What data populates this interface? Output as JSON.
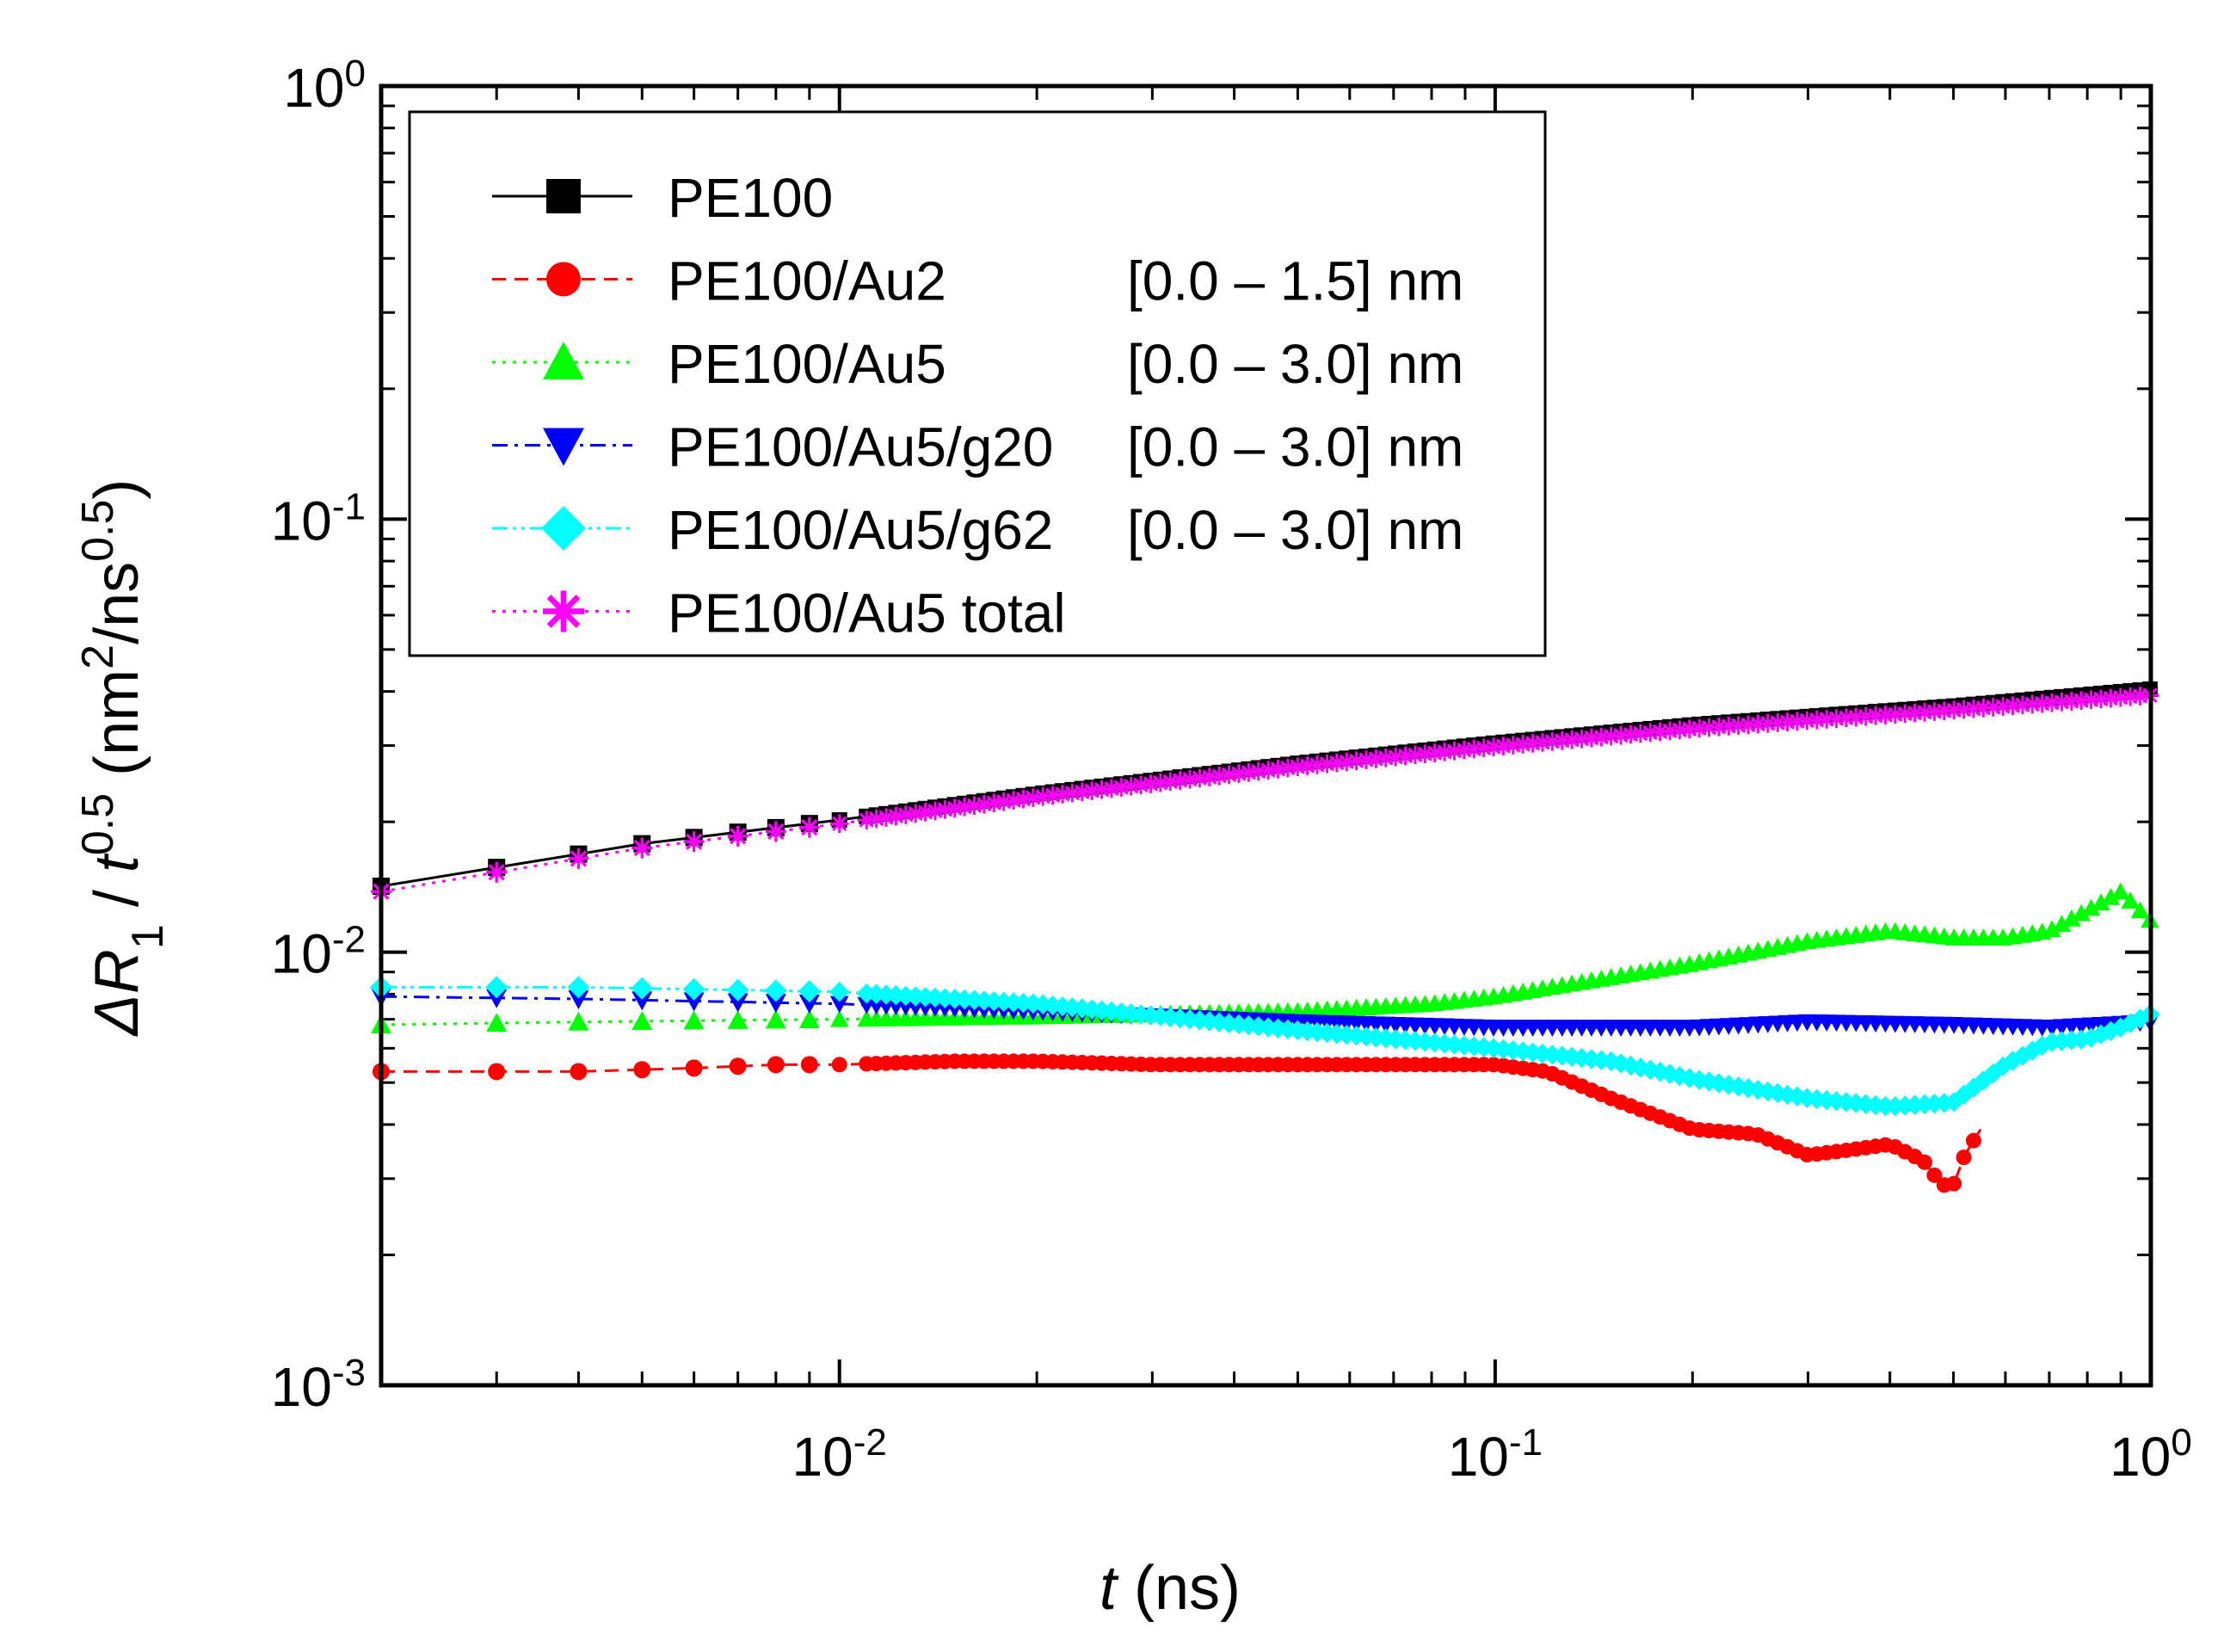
{
  "chart_data": {
    "type": "line",
    "xscale": "log",
    "yscale": "log",
    "xlim": [
      0.002,
      1
    ],
    "ylim": [
      0.001,
      1
    ],
    "xlabel": {
      "italic": "t",
      "rest": " (ns)"
    },
    "ylabel": {
      "delta": "ΔR",
      "sub": "1",
      "mid1": " / ",
      "t": "t",
      "sup1": "0.5",
      "mid2": " (nm",
      "sup2": "2",
      "mid3": "/ns",
      "sup3": "0.5",
      "end": ")"
    },
    "xticks": [
      {
        "value": 0.01,
        "base": "10",
        "exp": "-2"
      },
      {
        "value": 0.1,
        "base": "10",
        "exp": "-1"
      },
      {
        "value": 1,
        "base": "10",
        "exp": "0"
      }
    ],
    "yticks": [
      {
        "value": 0.001,
        "base": "10",
        "exp": "-3"
      },
      {
        "value": 0.01,
        "base": "10",
        "exp": "-2"
      },
      {
        "value": 0.1,
        "base": "10",
        "exp": "-1"
      },
      {
        "value": 1,
        "base": "10",
        "exp": "0"
      }
    ],
    "legend": {
      "placement": "top-left"
    },
    "series": [
      {
        "name": "PE100",
        "range": "",
        "color": "#000000",
        "dash": "solid",
        "marker": "square",
        "x": [
          0.002,
          0.005,
          0.01,
          0.02,
          0.05,
          0.1,
          0.2,
          0.5,
          1.0
        ],
        "y": [
          0.0142,
          0.0178,
          0.0202,
          0.0232,
          0.0273,
          0.0304,
          0.0335,
          0.037,
          0.0405
        ]
      },
      {
        "name": "PE100/Au2",
        "range": "[0.0 – 1.5] nm",
        "color": "#ff0000",
        "dash": "dashed",
        "marker": "circle",
        "x": [
          0.002,
          0.004,
          0.006,
          0.008,
          0.01,
          0.015,
          0.02,
          0.03,
          0.05,
          0.07,
          0.1,
          0.12,
          0.15,
          0.2,
          0.25,
          0.3,
          0.35,
          0.4,
          0.45,
          0.48,
          0.5,
          0.52,
          0.55
        ],
        "y": [
          0.0053,
          0.0053,
          0.0054,
          0.0055,
          0.0055,
          0.0056,
          0.0056,
          0.0055,
          0.0055,
          0.0055,
          0.0055,
          0.0053,
          0.0046,
          0.0039,
          0.0038,
          0.0034,
          0.0035,
          0.0036,
          0.0033,
          0.0029,
          0.0029,
          0.0034,
          0.0039
        ]
      },
      {
        "name": "PE100/Au5",
        "range": "[0.0 – 3.0] nm",
        "color": "#00ff00",
        "dash": "dotted",
        "marker": "triangle-up",
        "x": [
          0.002,
          0.004,
          0.01,
          0.02,
          0.05,
          0.08,
          0.1,
          0.2,
          0.3,
          0.4,
          0.5,
          0.6,
          0.7,
          0.8,
          0.9,
          1.0
        ],
        "y": [
          0.0068,
          0.0069,
          0.007,
          0.0071,
          0.0073,
          0.0076,
          0.0079,
          0.0094,
          0.0106,
          0.0112,
          0.0108,
          0.0108,
          0.0112,
          0.0125,
          0.0138,
          0.0118
        ]
      },
      {
        "name": "PE100/Au5/g20",
        "range": "[0.0 – 3.0] nm",
        "color": "#0000ff",
        "dash": "dashdot",
        "marker": "triangle-down",
        "x": [
          0.002,
          0.004,
          0.01,
          0.02,
          0.05,
          0.1,
          0.2,
          0.3,
          0.5,
          0.7,
          1.0
        ],
        "y": [
          0.0079,
          0.0078,
          0.0076,
          0.0073,
          0.0069,
          0.0067,
          0.0067,
          0.0069,
          0.0068,
          0.0067,
          0.0069
        ]
      },
      {
        "name": "PE100/Au5/g62",
        "range": "[0.0 – 3.0] nm",
        "color": "#00ffff",
        "dash": "dashdotdot",
        "marker": "diamond",
        "x": [
          0.002,
          0.004,
          0.01,
          0.02,
          0.05,
          0.1,
          0.15,
          0.2,
          0.3,
          0.4,
          0.5,
          0.6,
          0.7,
          0.8,
          0.9,
          1.0
        ],
        "y": [
          0.0083,
          0.0083,
          0.0081,
          0.0076,
          0.0066,
          0.006,
          0.0056,
          0.0051,
          0.0046,
          0.0044,
          0.0045,
          0.0055,
          0.0062,
          0.0063,
          0.0067,
          0.0072
        ]
      },
      {
        "name": "PE100/Au5 total",
        "range": "",
        "color": "#ff00ff",
        "dash": "dotted",
        "marker": "star",
        "x": [
          0.002,
          0.005,
          0.01,
          0.02,
          0.05,
          0.1,
          0.2,
          0.5,
          1.0
        ],
        "y": [
          0.0138,
          0.0174,
          0.0198,
          0.0228,
          0.0268,
          0.0298,
          0.0328,
          0.0362,
          0.0392
        ]
      }
    ]
  }
}
